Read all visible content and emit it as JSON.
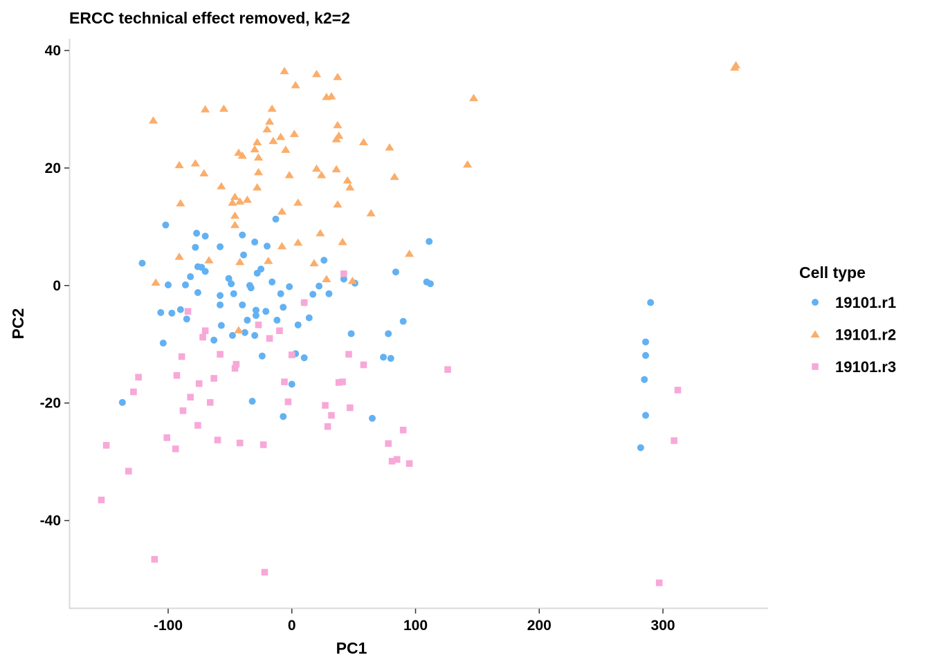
{
  "chart_data": {
    "type": "scatter",
    "title": "ERCC technical effect removed, k2=2",
    "xlabel": "PC1",
    "ylabel": "PC2",
    "xlim": [
      -180,
      385
    ],
    "ylim": [
      -55,
      42
    ],
    "xticks": [
      -100,
      0,
      100,
      200,
      300
    ],
    "yticks": [
      -40,
      -20,
      0,
      20,
      40
    ],
    "xtick_labels": [
      "-100",
      "0",
      "100",
      "200",
      "300"
    ],
    "ytick_labels": [
      "-40",
      "-20",
      "0",
      "20",
      "40"
    ],
    "grid": false,
    "legend": {
      "title": "Cell type",
      "position": "right"
    },
    "series": [
      {
        "name": "19101.r1",
        "color": "#62b1f2",
        "marker": "circle",
        "points": [
          [
            -102,
            10.3
          ],
          [
            -77,
            8.9
          ],
          [
            -70,
            8.4
          ],
          [
            -13,
            11.3
          ],
          [
            -121,
            3.8
          ],
          [
            -78,
            6.5
          ],
          [
            -58,
            6.6
          ],
          [
            -40,
            8.6
          ],
          [
            -30,
            7.4
          ],
          [
            -20,
            6.7
          ],
          [
            -76,
            3.2
          ],
          [
            -73,
            3.1
          ],
          [
            -70,
            2.4
          ],
          [
            -82,
            1.5
          ],
          [
            -100,
            0.1
          ],
          [
            -86,
            0.1
          ],
          [
            -51,
            1.2
          ],
          [
            -49,
            0.3
          ],
          [
            -39,
            5.2
          ],
          [
            -25,
            2.8
          ],
          [
            -28,
            2.1
          ],
          [
            -34,
            0
          ],
          [
            -33,
            -0.4
          ],
          [
            -16,
            0.6
          ],
          [
            -2,
            -0.2
          ],
          [
            10,
            -2.9
          ],
          [
            17,
            -1.5
          ],
          [
            22,
            -0.1
          ],
          [
            26,
            4.3
          ],
          [
            30,
            -1.4
          ],
          [
            42,
            1.1
          ],
          [
            51,
            0.4
          ],
          [
            84,
            2.3
          ],
          [
            109,
            0.6
          ],
          [
            112,
            0.3
          ],
          [
            111,
            7.5
          ],
          [
            -90,
            -4.1
          ],
          [
            -85,
            -5.7
          ],
          [
            -76,
            -1.2
          ],
          [
            -58,
            -3.3
          ],
          [
            -58,
            -1.7
          ],
          [
            -47,
            -1.4
          ],
          [
            -40,
            -3.3
          ],
          [
            -36,
            -5.9
          ],
          [
            -29,
            -4.2
          ],
          [
            -29,
            -5.1
          ],
          [
            -21,
            -4.4
          ],
          [
            -12,
            -5.9
          ],
          [
            -9,
            -1.4
          ],
          [
            -7,
            -3.7
          ],
          [
            5,
            -6.7
          ],
          [
            14,
            -5.5
          ],
          [
            -106,
            -4.6
          ],
          [
            -97,
            -4.7
          ],
          [
            -104,
            -9.8
          ],
          [
            -63,
            -9.3
          ],
          [
            -57,
            -6.8
          ],
          [
            -48,
            -8.5
          ],
          [
            -38,
            -8.0
          ],
          [
            -30,
            -8.5
          ],
          [
            -24,
            -12
          ],
          [
            3,
            -11.6
          ],
          [
            10,
            -12.3
          ],
          [
            48,
            -8.2
          ],
          [
            74,
            -12.2
          ],
          [
            78,
            -8.2
          ],
          [
            80,
            -12.4
          ],
          [
            90,
            -6.1
          ],
          [
            -137,
            -19.9
          ],
          [
            -32,
            -19.7
          ],
          [
            -7,
            -22.3
          ],
          [
            0,
            -16.8
          ],
          [
            65,
            -22.6
          ],
          [
            290,
            -2.9
          ],
          [
            286,
            -9.6
          ],
          [
            286,
            -11.9
          ],
          [
            285,
            -16
          ],
          [
            286,
            -22.1
          ],
          [
            282,
            -27.6
          ]
        ]
      },
      {
        "name": "19101.r2",
        "color": "#fbad6a",
        "marker": "triangle",
        "points": [
          [
            -6,
            36.5
          ],
          [
            20,
            36
          ],
          [
            37,
            35.5
          ],
          [
            3,
            34.1
          ],
          [
            28,
            32.1
          ],
          [
            32,
            32.2
          ],
          [
            147,
            31.9
          ],
          [
            -112,
            28.1
          ],
          [
            -70,
            30
          ],
          [
            -55,
            30.1
          ],
          [
            -16,
            30.1
          ],
          [
            -18,
            27.9
          ],
          [
            -20,
            26.6
          ],
          [
            -9,
            25.3
          ],
          [
            2,
            25.8
          ],
          [
            36,
            24.9
          ],
          [
            38,
            25.5
          ],
          [
            37,
            27.3
          ],
          [
            58,
            24.4
          ],
          [
            79,
            23.5
          ],
          [
            -15,
            24.6
          ],
          [
            -28,
            24.4
          ],
          [
            -27,
            21.8
          ],
          [
            -30,
            23.2
          ],
          [
            -5,
            23.1
          ],
          [
            -43,
            22.6
          ],
          [
            -40,
            22.1
          ],
          [
            -91,
            20.5
          ],
          [
            -78,
            20.8
          ],
          [
            -71,
            19.1
          ],
          [
            -27,
            19.3
          ],
          [
            -2,
            18.8
          ],
          [
            20,
            19.9
          ],
          [
            24,
            18.8
          ],
          [
            36,
            19.8
          ],
          [
            45,
            17.9
          ],
          [
            47,
            16.7
          ],
          [
            83,
            18.5
          ],
          [
            142,
            20.6
          ],
          [
            -57,
            16.9
          ],
          [
            -28,
            16.7
          ],
          [
            -90,
            14
          ],
          [
            -48,
            14.1
          ],
          [
            -46,
            15.1
          ],
          [
            -42,
            14.3
          ],
          [
            -36,
            14.6
          ],
          [
            -46,
            11.9
          ],
          [
            -46,
            10.3
          ],
          [
            -8,
            12.6
          ],
          [
            5,
            14.1
          ],
          [
            37,
            13.8
          ],
          [
            64,
            12.3
          ],
          [
            -67,
            4.3
          ],
          [
            -91,
            4.9
          ],
          [
            -42,
            4.0
          ],
          [
            -19,
            4.2
          ],
          [
            -8,
            6.7
          ],
          [
            5,
            7.3
          ],
          [
            23,
            8.9
          ],
          [
            41,
            7.4
          ],
          [
            18,
            3.8
          ],
          [
            28,
            1.1
          ],
          [
            49,
            0.8
          ],
          [
            95,
            5.4
          ],
          [
            -110,
            0.5
          ],
          [
            -43,
            -7.6
          ],
          [
            359,
            37.5
          ],
          [
            358,
            37.1
          ]
        ]
      },
      {
        "name": "19101.r3",
        "color": "#f7a8d8",
        "marker": "square",
        "points": [
          [
            -84,
            -4.4
          ],
          [
            -70,
            -7.7
          ],
          [
            -72,
            -8.8
          ],
          [
            -27,
            -6.7
          ],
          [
            -10,
            -7.7
          ],
          [
            -18,
            -9.0
          ],
          [
            10,
            -2.9
          ],
          [
            42,
            2.0
          ],
          [
            -89,
            -12.1
          ],
          [
            -58,
            -11.7
          ],
          [
            -45,
            -13.4
          ],
          [
            -46,
            -14.1
          ],
          [
            0,
            -11.8
          ],
          [
            46,
            -11.7
          ],
          [
            58,
            -13.5
          ],
          [
            126,
            -14.3
          ],
          [
            -124,
            -15.6
          ],
          [
            -93,
            -15.3
          ],
          [
            -75,
            -16.7
          ],
          [
            -63,
            -15.8
          ],
          [
            -128,
            -18.1
          ],
          [
            -82,
            -19.0
          ],
          [
            -66,
            -19.9
          ],
          [
            -88,
            -21.3
          ],
          [
            -6,
            -16.4
          ],
          [
            -3,
            -19.8
          ],
          [
            38,
            -16.5
          ],
          [
            41,
            -16.4
          ],
          [
            27,
            -20.4
          ],
          [
            47,
            -20.8
          ],
          [
            32,
            -22.1
          ],
          [
            -76,
            -23.8
          ],
          [
            -101,
            -25.9
          ],
          [
            -60,
            -26.3
          ],
          [
            -42,
            -26.8
          ],
          [
            -23,
            -27.1
          ],
          [
            29,
            -24.0
          ],
          [
            90,
            -24.6
          ],
          [
            -150,
            -27.2
          ],
          [
            -94,
            -27.8
          ],
          [
            78,
            -26.9
          ],
          [
            85,
            -29.6
          ],
          [
            81,
            -29.9
          ],
          [
            95,
            -30.3
          ],
          [
            -132,
            -31.6
          ],
          [
            -154,
            -36.5
          ],
          [
            -111,
            -46.6
          ],
          [
            -22,
            -48.8
          ],
          [
            312,
            -17.8
          ],
          [
            309,
            -26.4
          ],
          [
            297,
            -50.6
          ]
        ]
      }
    ]
  }
}
